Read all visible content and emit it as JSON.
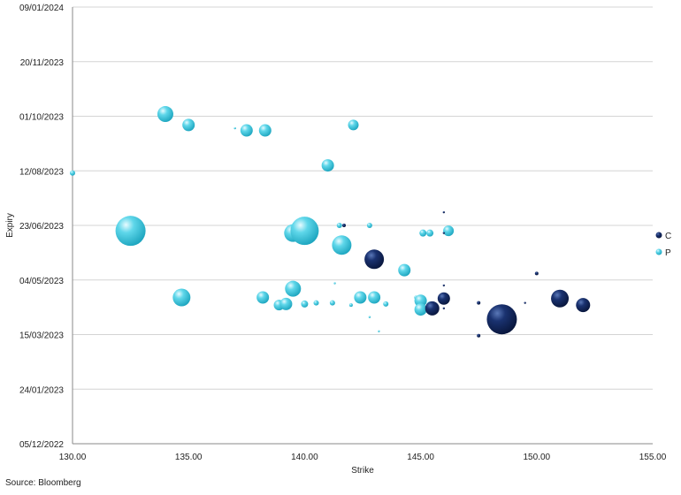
{
  "chart_data": {
    "type": "scatter",
    "xlabel": "Strike",
    "ylabel": "Expiry",
    "xlim": [
      130,
      155
    ],
    "x_ticks": [
      "130.00",
      "135.00",
      "140.00",
      "145.00",
      "150.00",
      "155.00"
    ],
    "ylim": [
      "2022-12-05",
      "2024-01-09"
    ],
    "y_ticks": [
      {
        "date": "2022-12-05",
        "label": "05/12/2022"
      },
      {
        "date": "2023-01-24",
        "label": "24/01/2023"
      },
      {
        "date": "2023-03-15",
        "label": "15/03/2023"
      },
      {
        "date": "2023-05-04",
        "label": "04/05/2023"
      },
      {
        "date": "2023-06-23",
        "label": "23/06/2023"
      },
      {
        "date": "2023-08-12",
        "label": "12/08/2023"
      },
      {
        "date": "2023-10-01",
        "label": "01/10/2023"
      },
      {
        "date": "2023-11-20",
        "label": "20/11/2023"
      },
      {
        "date": "2024-01-09",
        "label": "09/01/2024"
      }
    ],
    "grid": "horizontal",
    "legend": "right",
    "source": "Source: Bloomberg",
    "colors": {
      "C": "#0c1f4f",
      "P": "#32c3dc"
    },
    "series": [
      {
        "name": "C",
        "points": [
          {
            "x": 141.7,
            "y": "2023-06-23",
            "size": 2
          },
          {
            "x": 146.0,
            "y": "2023-07-05",
            "size": 1
          },
          {
            "x": 146.0,
            "y": "2023-06-16",
            "size": 1
          },
          {
            "x": 146.0,
            "y": "2023-04-29",
            "size": 1
          },
          {
            "x": 146.0,
            "y": "2023-04-08",
            "size": 1
          },
          {
            "x": 143.0,
            "y": "2023-05-23",
            "size": 11
          },
          {
            "x": 146.0,
            "y": "2023-04-17",
            "size": 7
          },
          {
            "x": 145.5,
            "y": "2023-04-08",
            "size": 8
          },
          {
            "x": 147.5,
            "y": "2023-04-13",
            "size": 2
          },
          {
            "x": 147.5,
            "y": "2023-03-14",
            "size": 2
          },
          {
            "x": 148.5,
            "y": "2023-03-29",
            "size": 17
          },
          {
            "x": 150.0,
            "y": "2023-05-10",
            "size": 2
          },
          {
            "x": 149.5,
            "y": "2023-04-13",
            "size": 1
          },
          {
            "x": 151.0,
            "y": "2023-04-17",
            "size": 10
          },
          {
            "x": 152.0,
            "y": "2023-04-11",
            "size": 8
          }
        ]
      },
      {
        "name": "P",
        "points": [
          {
            "x": 130.0,
            "y": "2023-08-10",
            "size": 3
          },
          {
            "x": 132.5,
            "y": "2023-06-18",
            "size": 17
          },
          {
            "x": 134.0,
            "y": "2023-10-03",
            "size": 9
          },
          {
            "x": 135.0,
            "y": "2023-09-23",
            "size": 7
          },
          {
            "x": 134.7,
            "y": "2023-04-18",
            "size": 10
          },
          {
            "x": 137.0,
            "y": "2023-09-20",
            "size": 1
          },
          {
            "x": 137.5,
            "y": "2023-09-18",
            "size": 7
          },
          {
            "x": 138.3,
            "y": "2023-09-18",
            "size": 7
          },
          {
            "x": 138.2,
            "y": "2023-04-18",
            "size": 7
          },
          {
            "x": 138.9,
            "y": "2023-04-11",
            "size": 6
          },
          {
            "x": 139.2,
            "y": "2023-04-12",
            "size": 7
          },
          {
            "x": 139.5,
            "y": "2023-06-16",
            "size": 10
          },
          {
            "x": 139.5,
            "y": "2023-04-26",
            "size": 9
          },
          {
            "x": 140.0,
            "y": "2023-06-18",
            "size": 16
          },
          {
            "x": 140.0,
            "y": "2023-04-12",
            "size": 4
          },
          {
            "x": 140.5,
            "y": "2023-04-13",
            "size": 3
          },
          {
            "x": 141.0,
            "y": "2023-08-17",
            "size": 7
          },
          {
            "x": 141.2,
            "y": "2023-04-13",
            "size": 3
          },
          {
            "x": 141.3,
            "y": "2023-05-01",
            "size": 1
          },
          {
            "x": 141.5,
            "y": "2023-06-23",
            "size": 3
          },
          {
            "x": 141.6,
            "y": "2023-06-05",
            "size": 11
          },
          {
            "x": 142.0,
            "y": "2023-04-11",
            "size": 2
          },
          {
            "x": 142.1,
            "y": "2023-09-23",
            "size": 6
          },
          {
            "x": 142.4,
            "y": "2023-04-18",
            "size": 7
          },
          {
            "x": 142.8,
            "y": "2023-06-23",
            "size": 3
          },
          {
            "x": 142.8,
            "y": "2023-03-31",
            "size": 1
          },
          {
            "x": 143.0,
            "y": "2023-04-18",
            "size": 7
          },
          {
            "x": 143.2,
            "y": "2023-03-18",
            "size": 1
          },
          {
            "x": 143.5,
            "y": "2023-04-12",
            "size": 3
          },
          {
            "x": 144.3,
            "y": "2023-05-13",
            "size": 7
          },
          {
            "x": 144.8,
            "y": "2023-04-18",
            "size": 2
          },
          {
            "x": 145.0,
            "y": "2023-04-15",
            "size": 7
          },
          {
            "x": 145.0,
            "y": "2023-04-07",
            "size": 7
          },
          {
            "x": 145.1,
            "y": "2023-06-16",
            "size": 4
          },
          {
            "x": 145.4,
            "y": "2023-06-16",
            "size": 4
          },
          {
            "x": 145.4,
            "y": "2023-04-11",
            "size": 4
          },
          {
            "x": 146.2,
            "y": "2023-06-18",
            "size": 6
          }
        ]
      }
    ]
  }
}
